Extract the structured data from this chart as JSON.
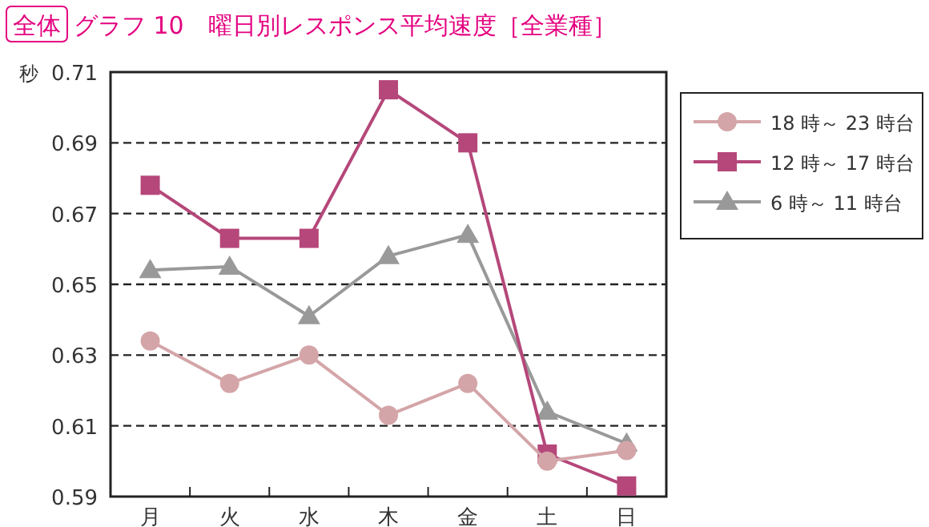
{
  "chart_data": {
    "type": "line",
    "title": "グラフ 10　曜日別レスポンス平均速度［全業種］",
    "annotations": [
      "全体"
    ],
    "ylabel": "秒",
    "categories": [
      "月",
      "火",
      "水",
      "木",
      "金",
      "土",
      "日"
    ],
    "series": [
      {
        "name": "18 時～ 23 時台",
        "color": "#d4a5a8",
        "marker": "circle",
        "values": [
          0.634,
          0.622,
          0.63,
          0.613,
          0.622,
          0.6,
          0.603
        ]
      },
      {
        "name": "12 時～ 17 時台",
        "color": "#b5477a",
        "marker": "square",
        "values": [
          0.678,
          0.663,
          0.663,
          0.705,
          0.69,
          0.602,
          0.593
        ]
      },
      {
        "name": "6 時～ 11 時台",
        "color": "#999999",
        "marker": "triangle",
        "values": [
          0.654,
          0.655,
          0.641,
          0.658,
          0.664,
          0.614,
          0.605
        ]
      }
    ],
    "ylim": [
      0.59,
      0.71
    ],
    "yticks": [
      {
        "value": 0.59,
        "label": "0.59"
      },
      {
        "value": 0.61,
        "label": "0.61"
      },
      {
        "value": 0.63,
        "label": "0.63"
      },
      {
        "value": 0.65,
        "label": "0.65"
      },
      {
        "value": 0.67,
        "label": "0.67"
      },
      {
        "value": 0.69,
        "label": "0.69"
      },
      {
        "value": 0.71,
        "label": "0.71"
      }
    ],
    "grid": "y",
    "legend": "right",
    "line_style": "solid"
  }
}
